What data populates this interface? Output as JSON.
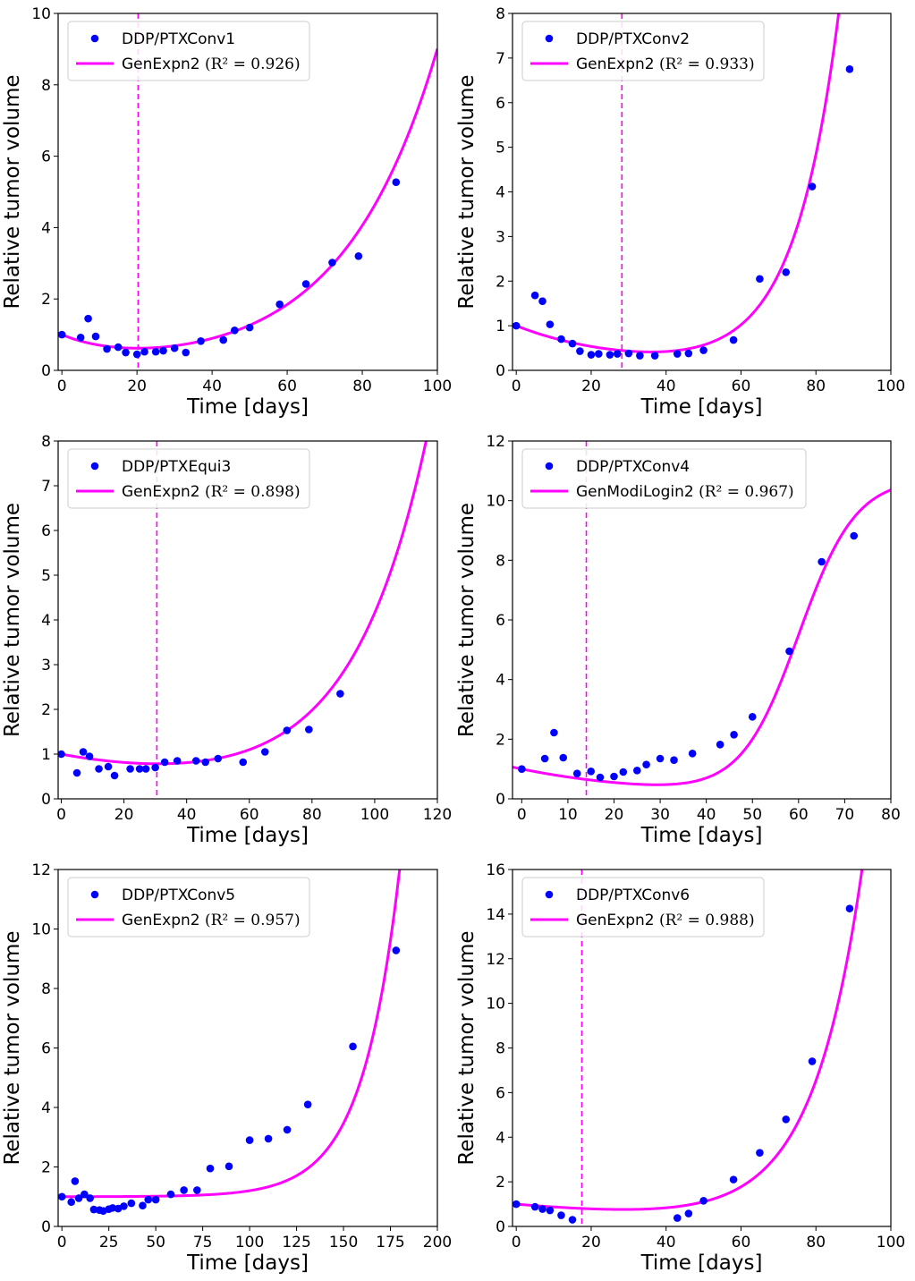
{
  "style": {
    "fit_color": "#ff00ff",
    "point_color": "#0000ff",
    "axis_color": "#000000"
  },
  "chart_data": [
    {
      "type": "scatter",
      "title": "",
      "xlabel": "Time [days]",
      "ylabel": "Relative tumor volume",
      "xlim": [
        -1,
        100
      ],
      "ylim": [
        0,
        10
      ],
      "xticks": [
        0,
        20,
        40,
        60,
        80,
        100
      ],
      "yticks": [
        0,
        2,
        4,
        6,
        8,
        10
      ],
      "legend_position": "upper-left",
      "series": [
        {
          "name": "DDP/PTXConv1",
          "kind": "points",
          "x": [
            0,
            5,
            7,
            9,
            12,
            15,
            17,
            20,
            22,
            25,
            27,
            30,
            33,
            37,
            43,
            46,
            50,
            58,
            65,
            72,
            79,
            89
          ],
          "y": [
            1.0,
            0.92,
            1.45,
            0.95,
            0.6,
            0.65,
            0.5,
            0.45,
            0.52,
            0.52,
            0.55,
            0.62,
            0.5,
            0.82,
            0.85,
            1.12,
            1.2,
            1.85,
            2.42,
            3.02,
            3.2,
            5.27
          ]
        },
        {
          "name": "GenExpn2",
          "kind": "fit",
          "r2_label": "(R² = 0.926)",
          "model": {
            "form": "exp-rise-decay",
            "a": 0.1658,
            "b": 0.03995,
            "c": 0.8342,
            "d": 0.06
          }
        }
      ],
      "vline_x": 20.3
    },
    {
      "type": "scatter",
      "title": "",
      "xlabel": "Time [days]",
      "ylabel": "Relative tumor volume",
      "xlim": [
        -1,
        100
      ],
      "ylim": [
        0,
        8
      ],
      "xticks": [
        0,
        20,
        40,
        60,
        80,
        100
      ],
      "yticks": [
        0,
        1,
        2,
        3,
        4,
        5,
        6,
        7,
        8
      ],
      "legend_position": "upper-left",
      "series": [
        {
          "name": "DDP/PTXConv2",
          "kind": "points",
          "x": [
            0,
            5,
            7,
            9,
            12,
            15,
            17,
            20,
            22,
            25,
            27,
            30,
            33,
            37,
            43,
            46,
            50,
            58,
            65,
            72,
            79,
            89
          ],
          "y": [
            1.0,
            1.68,
            1.55,
            1.03,
            0.7,
            0.6,
            0.43,
            0.35,
            0.37,
            0.35,
            0.37,
            0.38,
            0.33,
            0.33,
            0.37,
            0.38,
            0.45,
            0.68,
            2.05,
            2.2,
            4.12,
            6.75
          ]
        },
        {
          "name": "GenExpn2",
          "kind": "fit",
          "r2_label": "(R² = 0.933)",
          "model": {
            "form": "exp-rise-decay",
            "a": 0.005787,
            "b": 0.08395,
            "c": 0.994213,
            "d": 0.0339
          }
        }
      ],
      "vline_x": 28.2
    },
    {
      "type": "scatter",
      "title": "",
      "xlabel": "Time [days]",
      "ylabel": "Relative tumor volume",
      "xlim": [
        -1,
        120
      ],
      "ylim": [
        0,
        8
      ],
      "xticks": [
        0,
        20,
        40,
        60,
        80,
        100,
        120
      ],
      "yticks": [
        0,
        1,
        2,
        3,
        4,
        5,
        6,
        7,
        8
      ],
      "legend_position": "upper-left",
      "series": [
        {
          "name": "DDP/PTXEqui3",
          "kind": "points",
          "x": [
            0,
            5,
            7,
            9,
            12,
            15,
            17,
            22,
            25,
            27,
            30,
            33,
            37,
            43,
            46,
            50,
            58,
            65,
            72,
            79,
            89
          ],
          "y": [
            1.0,
            0.58,
            1.05,
            0.95,
            0.67,
            0.72,
            0.52,
            0.67,
            0.67,
            0.67,
            0.7,
            0.82,
            0.85,
            0.85,
            0.82,
            0.9,
            0.82,
            1.05,
            1.53,
            1.55,
            2.35
          ]
        },
        {
          "name": "GenExpn2",
          "kind": "fit",
          "r2_label": "(R² = 0.898)",
          "model": {
            "form": "exp-rise-decay",
            "a": 0.0628,
            "b": 0.0415,
            "c": 0.9372,
            "d": 0.0168
          }
        }
      ],
      "vline_x": 30.5
    },
    {
      "type": "scatter",
      "title": "",
      "xlabel": "Time [days]",
      "ylabel": "Relative tumor volume",
      "xlim": [
        -2,
        80
      ],
      "ylim": [
        0,
        12
      ],
      "xticks": [
        0,
        10,
        20,
        30,
        40,
        50,
        60,
        70,
        80
      ],
      "yticks": [
        0,
        2,
        4,
        6,
        8,
        10,
        12
      ],
      "legend_position": "upper-left",
      "series": [
        {
          "name": "DDP/PTXConv4",
          "kind": "points",
          "x": [
            0,
            5,
            7,
            9,
            12,
            15,
            17,
            20,
            22,
            25,
            27,
            30,
            33,
            37,
            43,
            46,
            50,
            58,
            65,
            72
          ],
          "y": [
            1.0,
            1.35,
            2.22,
            1.38,
            0.85,
            0.92,
            0.72,
            0.75,
            0.9,
            0.95,
            1.15,
            1.35,
            1.3,
            1.52,
            1.82,
            2.15,
            2.75,
            4.95,
            7.95,
            8.82
          ]
        },
        {
          "name": "GenModiLogin2",
          "kind": "fit",
          "r2_label": "(R² = 0.967)",
          "model": {
            "form": "decay-plus-logistic",
            "p0": 1.0,
            "k": 0.0317,
            "K": 10.7,
            "r": 0.16,
            "t0": 60,
            "B": 0.0004
          }
        }
      ],
      "vline_x": 14.0
    },
    {
      "type": "scatter",
      "title": "",
      "xlabel": "Time [days]",
      "ylabel": "Relative tumor volume",
      "xlim": [
        -2,
        200
      ],
      "ylim": [
        0,
        12
      ],
      "xticks": [
        0,
        25,
        50,
        75,
        100,
        125,
        150,
        175,
        200
      ],
      "yticks": [
        0,
        2,
        4,
        6,
        8,
        10,
        12
      ],
      "legend_position": "upper-left",
      "series": [
        {
          "name": "DDP/PTXConv5",
          "kind": "points",
          "x": [
            0,
            5,
            7,
            9,
            12,
            15,
            17,
            20,
            22,
            25,
            27,
            30,
            33,
            37,
            43,
            46,
            50,
            58,
            65,
            72,
            79,
            89,
            100,
            110,
            120,
            131,
            155,
            178
          ],
          "y": [
            1.0,
            0.82,
            1.52,
            0.95,
            1.08,
            0.95,
            0.57,
            0.55,
            0.52,
            0.58,
            0.62,
            0.6,
            0.68,
            0.78,
            0.7,
            0.9,
            0.9,
            1.08,
            1.22,
            1.22,
            1.95,
            2.02,
            2.9,
            2.95,
            3.25,
            4.1,
            6.05,
            9.28
          ]
        },
        {
          "name": "GenExpn2",
          "kind": "fit",
          "r2_label": "(R² = 0.957)",
          "model": {
            "form": "exp-rise-decay",
            "a": 0.001366,
            "b": 0.05,
            "c": 0.998634,
            "d": 0.0
          }
        }
      ],
      "vline_x": null
    },
    {
      "type": "scatter",
      "title": "",
      "xlabel": "Time [days]",
      "ylabel": "Relative tumor volume",
      "xlim": [
        -1,
        100
      ],
      "ylim": [
        0,
        16
      ],
      "xticks": [
        0,
        20,
        40,
        60,
        80,
        100
      ],
      "yticks": [
        0,
        2,
        4,
        6,
        8,
        10,
        12,
        14,
        16
      ],
      "legend_position": "upper-left",
      "series": [
        {
          "name": "DDP/PTXConv6",
          "kind": "points",
          "x": [
            0,
            5,
            7,
            9,
            12,
            15,
            43,
            46,
            50,
            58,
            65,
            72,
            79,
            89
          ],
          "y": [
            1.0,
            0.88,
            0.78,
            0.72,
            0.5,
            0.3,
            0.38,
            0.58,
            1.15,
            2.1,
            3.3,
            4.8,
            7.4,
            14.25
          ]
        },
        {
          "name": "GenExpn2",
          "kind": "fit",
          "r2_label": "(R² = 0.988)",
          "model": {
            "form": "exp-rise-decay",
            "a": 0.015384,
            "b": 0.0751,
            "c": 0.984616,
            "d": 0.0157
          }
        }
      ],
      "vline_x": 17.5
    }
  ]
}
